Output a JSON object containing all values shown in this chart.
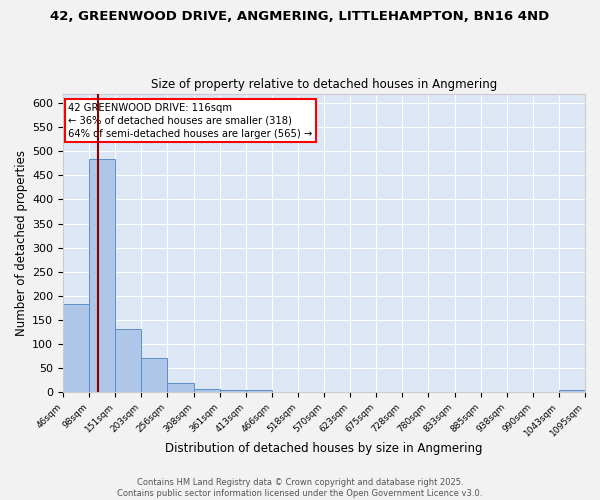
{
  "title_line1": "42, GREENWOOD DRIVE, ANGMERING, LITTLEHAMPTON, BN16 4ND",
  "title_line2": "Size of property relative to detached houses in Angmering",
  "xlabel": "Distribution of detached houses by size in Angmering",
  "ylabel": "Number of detached properties",
  "bar_values": [
    183,
    483,
    130,
    70,
    18,
    6,
    4,
    5,
    0,
    0,
    0,
    0,
    0,
    0,
    0,
    0,
    0,
    0,
    0,
    4
  ],
  "bin_labels": [
    "46sqm",
    "98sqm",
    "151sqm",
    "203sqm",
    "256sqm",
    "308sqm",
    "361sqm",
    "413sqm",
    "466sqm",
    "518sqm",
    "570sqm",
    "623sqm",
    "675sqm",
    "728sqm",
    "780sqm",
    "833sqm",
    "885sqm",
    "938sqm",
    "990sqm",
    "1043sqm",
    "1095sqm"
  ],
  "bar_color": "#aec6e8",
  "bar_edge_color": "#5b8fc9",
  "bg_color": "#dce6f5",
  "grid_color": "#ffffff",
  "fig_bg_color": "#f2f2f2",
  "red_line_x": 1.35,
  "ylim": [
    0,
    620
  ],
  "yticks": [
    0,
    50,
    100,
    150,
    200,
    250,
    300,
    350,
    400,
    450,
    500,
    550,
    600
  ],
  "annotation_title": "42 GREENWOOD DRIVE: 116sqm",
  "annotation_line1": "← 36% of detached houses are smaller (318)",
  "annotation_line2": "64% of semi-detached houses are larger (565) →",
  "footer_line1": "Contains HM Land Registry data © Crown copyright and database right 2025.",
  "footer_line2": "Contains public sector information licensed under the Open Government Licence v3.0."
}
